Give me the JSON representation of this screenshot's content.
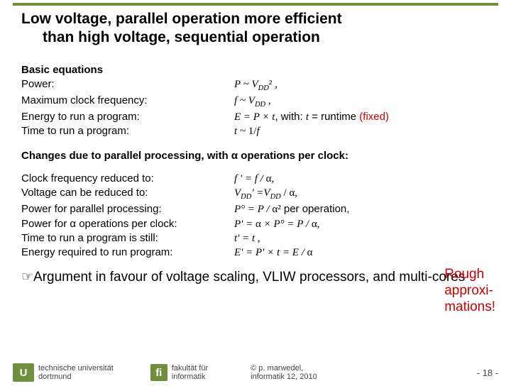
{
  "title_line1": "Low voltage, parallel operation more efficient",
  "title_line2": "than high voltage, sequential operation",
  "sec1_head": "Basic equations",
  "sec1_rows": {
    "r1_l": "Power:",
    "r2_l": "Maximum clock frequency:",
    "r3_l": "Energy to run a program:",
    "r4_l": "Time to run a program:"
  },
  "eq1": {
    "a": "P ~ V",
    "sub1": "DD",
    "b": "² ,"
  },
  "eq2": {
    "a": "f ~ V",
    "sub1": "DD",
    "b": " ,"
  },
  "eq3": {
    "a": "E = P × t",
    "b": ", with: ",
    "c": "t",
    "d": " = runtime ",
    "e": "(fixed)"
  },
  "eq4": {
    "a": "t ~ ",
    "b": "1/",
    "c": "f"
  },
  "changes_head": "Changes due to parallel processing, with α operations per clock:",
  "sec2_rows": {
    "r1_l": "Clock frequency reduced to:",
    "r2_l": "Voltage can be reduced to:",
    "r3_l": "Power for parallel processing:",
    "r4_l": "Power for α operations per clock:",
    "r5_l": "Time to run a program is still:",
    "r6_l": "Energy required to run program:"
  },
  "eq5": {
    "a": "f ' = f / ",
    "b": "α,"
  },
  "eq6": {
    "a": "V",
    "sub1": "DD",
    "b": "' =V",
    "sub2": "DD",
    "c": " / ",
    "d": "α,"
  },
  "eq7": {
    "a": "P° = P / ",
    "b": "α²",
    "c": " per operation,"
  },
  "eq8": {
    "a": "P' = ",
    "b": "α",
    "c": " × P° = P / ",
    "d": "α,"
  },
  "eq9": {
    "a": "t' = t",
    "b": " ,"
  },
  "eq10": {
    "a": "E' = P' × t = E / ",
    "b": "α"
  },
  "argument": "☞Argument in favour of voltage scaling, VLIW processors, and multi-cores",
  "rough": {
    "l1": "Rough",
    "l2": "approxi-",
    "l3": "mations!"
  },
  "footer": {
    "tu1": "technische universität",
    "tu2": "dortmund",
    "fi1": "fakultät für",
    "fi2": "informatik",
    "cp1": "© p. marwedel,",
    "cp2": "informatik 12, 2010",
    "page": "- 18 -"
  },
  "colors": {
    "accent": "#6f8f3f",
    "red": "#cc0000"
  }
}
